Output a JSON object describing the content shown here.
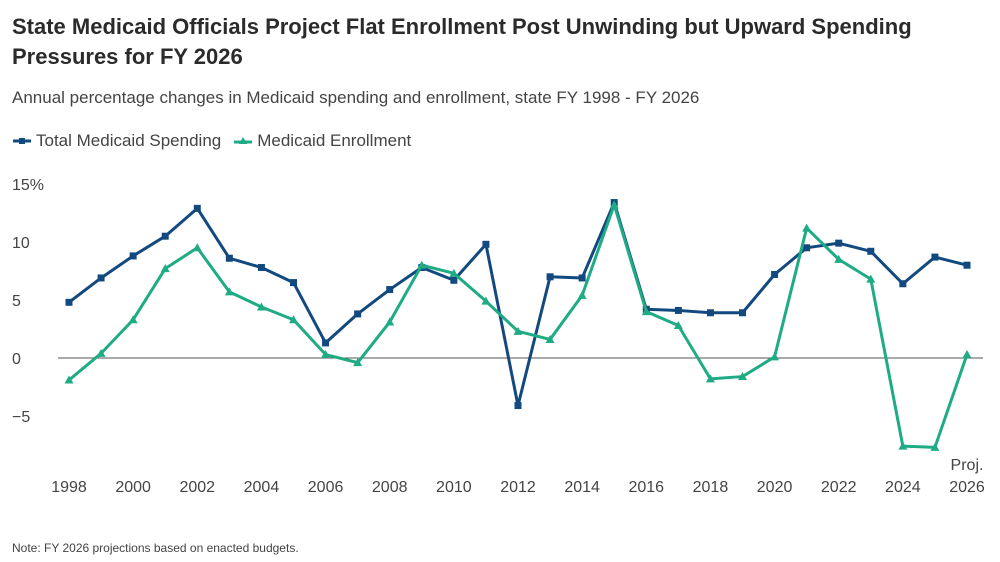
{
  "header": {
    "title": "State Medicaid Officials Project Flat Enrollment Post Unwinding but Upward Spending Pressures for FY 2026",
    "subtitle": "Annual percentage changes in Medicaid spending and enrollment, state FY 1998 - FY 2026"
  },
  "legend": [
    {
      "label": "Total Medicaid Spending",
      "color": "#12497f",
      "marker": "square"
    },
    {
      "label": "Medicaid Enrollment",
      "color": "#1fab84",
      "marker": "triangle"
    }
  ],
  "note": "Note:  FY 2026 projections based on enacted budgets.",
  "chart_data": {
    "type": "line",
    "title": "State Medicaid Officials Project Flat Enrollment Post Unwinding but Upward Spending Pressures for FY 2026",
    "subtitle": "Annual percentage changes in Medicaid spending and enrollment, state FY 1998 - FY 2026",
    "xlabel": "",
    "ylabel": "",
    "x": [
      1998,
      1999,
      2000,
      2001,
      2002,
      2003,
      2004,
      2005,
      2006,
      2007,
      2008,
      2009,
      2010,
      2011,
      2012,
      2013,
      2014,
      2015,
      2016,
      2017,
      2018,
      2019,
      2020,
      2021,
      2022,
      2023,
      2024,
      2025,
      2026
    ],
    "xticks": [
      "1998",
      "2000",
      "2002",
      "2004",
      "2006",
      "2008",
      "2010",
      "2012",
      "2014",
      "2016",
      "2018",
      "2020",
      "2022",
      "2024",
      "2026"
    ],
    "xtick_annotation": {
      "at": "2026",
      "text": "Proj."
    },
    "yticks": [
      "15%",
      "10",
      "5",
      "0",
      "−5"
    ],
    "ytick_values": [
      15,
      10,
      5,
      0,
      -5
    ],
    "ylim": [
      -8,
      15
    ],
    "zero_line": true,
    "grid": false,
    "legend_position": "top-left",
    "series": [
      {
        "name": "Total Medicaid Spending",
        "color": "#12497f",
        "marker": "square",
        "values": [
          4.8,
          6.9,
          8.8,
          10.5,
          12.9,
          8.6,
          7.8,
          6.5,
          1.3,
          3.8,
          5.9,
          7.8,
          6.7,
          9.8,
          -4.1,
          7.0,
          6.9,
          13.4,
          4.2,
          4.1,
          3.9,
          3.9,
          7.2,
          9.5,
          9.9,
          9.2,
          6.4,
          8.7,
          8.0
        ]
      },
      {
        "name": "Medicaid Enrollment",
        "color": "#1fab84",
        "marker": "triangle",
        "values": [
          -1.9,
          0.4,
          3.3,
          7.7,
          9.5,
          5.7,
          4.4,
          3.3,
          0.3,
          -0.4,
          3.1,
          8.0,
          7.3,
          4.9,
          2.3,
          1.6,
          5.4,
          13.2,
          4.0,
          2.8,
          -1.8,
          -1.6,
          0.1,
          11.2,
          8.5,
          6.8,
          -7.6,
          -7.7,
          0.3
        ]
      }
    ]
  }
}
